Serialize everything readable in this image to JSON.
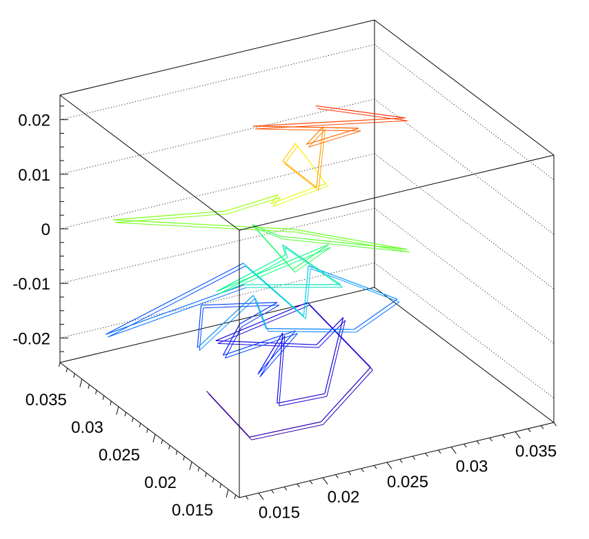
{
  "chart_data": {
    "type": "line3d",
    "title": "",
    "xlabel": "",
    "ylabel": "",
    "zlabel": "",
    "x_ticks": [
      "0.015",
      "0.02",
      "0.025",
      "0.03",
      "0.035"
    ],
    "y_ticks": [
      "0.015",
      "0.02",
      "0.025",
      "0.03",
      "0.035"
    ],
    "z_ticks": [
      "-0.02",
      "-0.01",
      "0",
      "0.01",
      "0.02"
    ],
    "x_tick_values": [
      0.015,
      0.02,
      0.025,
      0.03,
      0.035
    ],
    "y_tick_values": [
      0.015,
      0.02,
      0.025,
      0.03,
      0.035
    ],
    "z_tick_values": [
      -0.02,
      -0.01,
      0,
      0.01,
      0.02
    ],
    "xlim": [
      0.0135,
      0.038
    ],
    "ylim": [
      0.0135,
      0.038
    ],
    "zlim": [
      -0.0245,
      0.0245
    ],
    "grid": true,
    "colormap": "rainbow",
    "colors": [
      "#4b0082",
      "#0000ff",
      "#00bfff",
      "#00ff80",
      "#80ff00",
      "#ffff00",
      "#ff8000",
      "#ff2000"
    ],
    "series": [
      {
        "points": [
          [
            0.0195,
            0.0285,
            -0.0235
          ],
          [
            0.018,
            0.02,
            -0.0225
          ],
          [
            0.023,
            0.019,
            -0.0215
          ],
          [
            0.03,
            0.0245,
            -0.021
          ],
          [
            0.0305,
            0.034,
            -0.019
          ],
          [
            0.0225,
            0.0325,
            -0.02
          ],
          [
            0.0275,
            0.0275,
            -0.0185
          ],
          [
            0.031,
            0.03,
            -0.018
          ],
          [
            0.025,
            0.022,
            -0.0205
          ],
          [
            0.021,
            0.0215,
            -0.0195
          ],
          [
            0.026,
            0.0295,
            -0.0175
          ],
          [
            0.0215,
            0.025,
            -0.018
          ],
          [
            0.025,
            0.026,
            -0.013
          ],
          [
            0.0205,
            0.028,
            -0.017
          ],
          [
            0.0235,
            0.031,
            -0.016
          ],
          [
            0.027,
            0.032,
            -0.015
          ],
          [
            0.0225,
            0.0345,
            -0.0155
          ],
          [
            0.0185,
            0.028,
            -0.0145
          ],
          [
            0.024,
            0.03,
            -0.01
          ],
          [
            0.023,
            0.0265,
            -0.012
          ],
          [
            0.029,
            0.025,
            -0.014
          ],
          [
            0.0335,
            0.027,
            -0.013
          ],
          [
            0.03,
            0.033,
            -0.011
          ],
          [
            0.0245,
            0.024,
            -0.008
          ],
          [
            0.0255,
            0.034,
            -0.009
          ],
          [
            0.0165,
            0.037,
            -0.02
          ],
          [
            0.023,
            0.0295,
            -0.007
          ],
          [
            0.0285,
            0.026,
            -0.0065
          ],
          [
            0.028,
            0.033,
            -0.006
          ],
          [
            0.0265,
            0.03,
            -0.004
          ],
          [
            0.02,
            0.028,
            -0.005
          ],
          [
            0.029,
            0.0285,
            -0.002
          ],
          [
            0.0245,
            0.0255,
            -0.001
          ],
          [
            0.0265,
            0.0345,
            -0.003
          ],
          [
            0.0255,
            0.029,
            0.001
          ],
          [
            0.032,
            0.023,
            0.001
          ],
          [
            0.026,
            0.028,
            0.003
          ],
          [
            0.0165,
            0.036,
            0.002
          ],
          [
            0.023,
            0.032,
            0.004
          ],
          [
            0.0265,
            0.031,
            0.006
          ],
          [
            0.0245,
            0.0285,
            0.008
          ],
          [
            0.0285,
            0.028,
            0.01
          ],
          [
            0.029,
            0.033,
            0.012
          ],
          [
            0.026,
            0.0295,
            0.014
          ],
          [
            0.0255,
            0.024,
            0.015
          ],
          [
            0.03,
            0.031,
            0.0165
          ],
          [
            0.027,
            0.028,
            0.018
          ],
          [
            0.0305,
            0.027,
            0.02
          ],
          [
            0.024,
            0.03,
            0.021
          ],
          [
            0.033,
            0.025,
            0.0225
          ],
          [
            0.028,
            0.0285,
            0.024
          ]
        ]
      }
    ]
  }
}
